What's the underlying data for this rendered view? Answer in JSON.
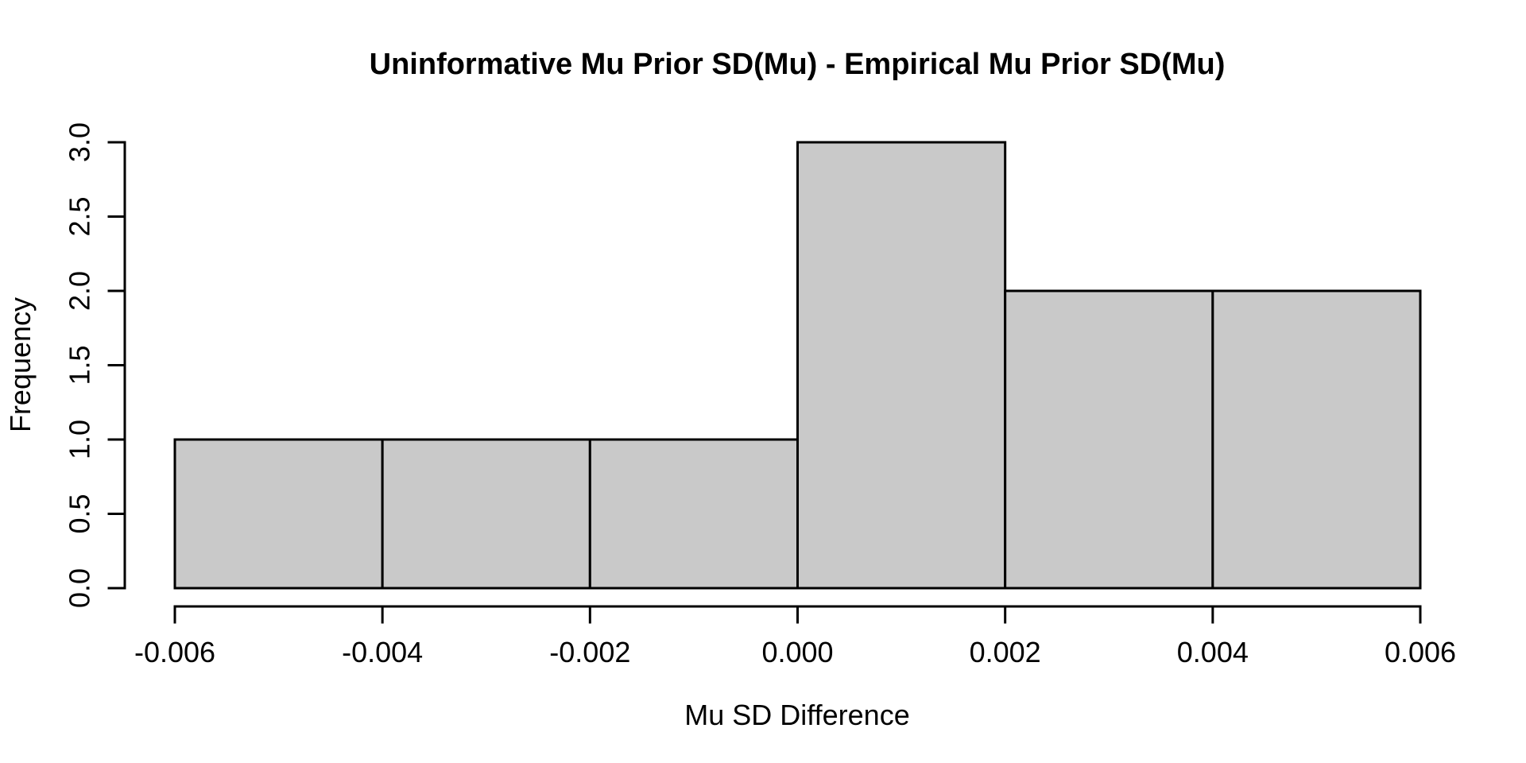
{
  "chart_data": {
    "type": "bar",
    "subtype": "histogram",
    "title": "Uninformative Mu Prior SD(Mu) - Empirical Mu Prior SD(Mu)",
    "xlabel": "Mu SD Difference",
    "ylabel": "Frequency",
    "xlim": [
      -0.006,
      0.006
    ],
    "ylim": [
      0,
      3
    ],
    "grid": false,
    "legend_position": "none",
    "bins": [
      {
        "from": -0.006,
        "to": -0.004,
        "count": 1
      },
      {
        "from": -0.004,
        "to": -0.002,
        "count": 1
      },
      {
        "from": -0.002,
        "to": 0.0,
        "count": 1
      },
      {
        "from": 0.0,
        "to": 0.002,
        "count": 3
      },
      {
        "from": 0.002,
        "to": 0.004,
        "count": 2
      },
      {
        "from": 0.004,
        "to": 0.006,
        "count": 2
      }
    ],
    "x_ticks": [
      {
        "value": -0.006,
        "label": "-0.006"
      },
      {
        "value": -0.004,
        "label": "-0.004"
      },
      {
        "value": -0.002,
        "label": "-0.002"
      },
      {
        "value": 0.0,
        "label": "0.000"
      },
      {
        "value": 0.002,
        "label": "0.002"
      },
      {
        "value": 0.004,
        "label": "0.004"
      },
      {
        "value": 0.006,
        "label": "0.006"
      }
    ],
    "y_ticks": [
      {
        "value": 0.0,
        "label": "0.0"
      },
      {
        "value": 0.5,
        "label": "0.5"
      },
      {
        "value": 1.0,
        "label": "1.0"
      },
      {
        "value": 1.5,
        "label": "1.5"
      },
      {
        "value": 2.0,
        "label": "2.0"
      },
      {
        "value": 2.5,
        "label": "2.5"
      },
      {
        "value": 3.0,
        "label": "3.0"
      }
    ],
    "colors": {
      "bar_fill": "#C9C9C9",
      "bar_stroke": "#000000",
      "axis": "#000000",
      "background": "#FFFFFF"
    }
  }
}
